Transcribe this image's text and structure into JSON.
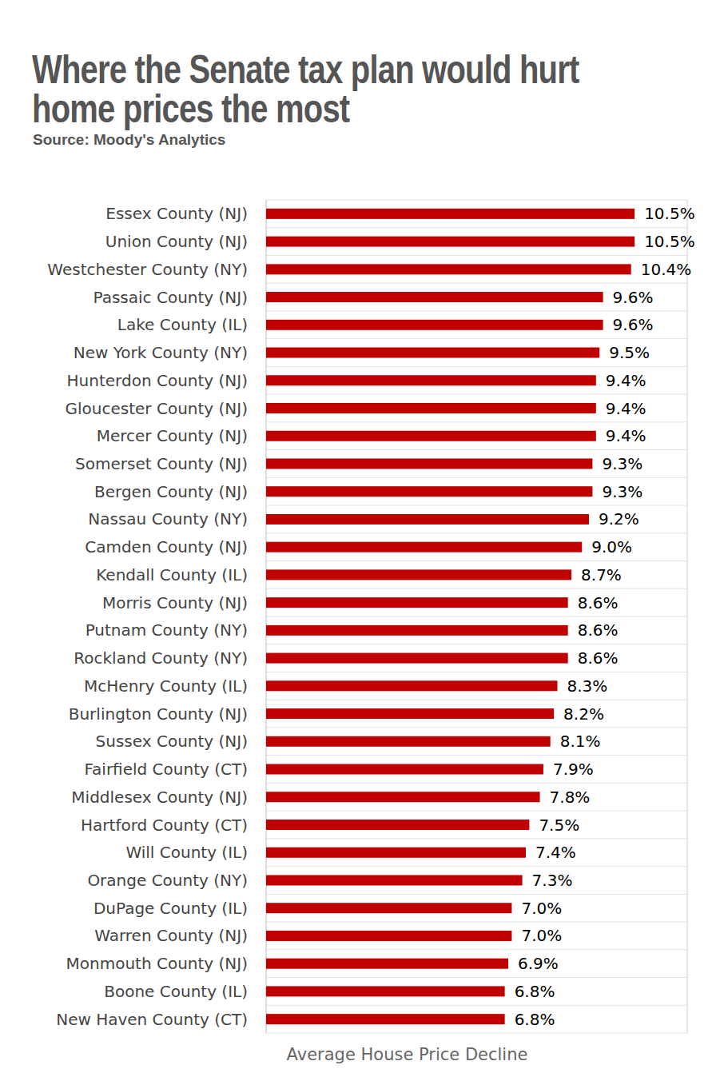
{
  "chart_data": {
    "type": "bar",
    "orientation": "horizontal",
    "title": "Where the Senate tax plan would hurt home prices the most",
    "subtitle": "Source: Moody's Analytics",
    "xlabel": "Average House Price Decline",
    "categories": [
      "Essex County (NJ)",
      "Union County (NJ)",
      "Westchester County (NY)",
      "Passaic County (NJ)",
      "Lake County (IL)",
      "New York County (NY)",
      "Hunterdon County (NJ)",
      "Gloucester County (NJ)",
      "Mercer County (NJ)",
      "Somerset County (NJ)",
      "Bergen County (NJ)",
      "Nassau County (NY)",
      "Camden County (NJ)",
      "Kendall County (IL)",
      "Morris County (NJ)",
      "Putnam County (NY)",
      "Rockland County (NY)",
      "McHenry County (IL)",
      "Burlington County (NJ)",
      "Sussex County (NJ)",
      "Fairfield County (CT)",
      "Middlesex County (NJ)",
      "Hartford County (CT)",
      "Will County (IL)",
      "Orange County (NY)",
      "DuPage County (IL)",
      "Warren County (NJ)",
      "Monmouth County (NJ)",
      "Boone County (IL)",
      "New Haven County (CT)"
    ],
    "values": [
      10.5,
      10.5,
      10.4,
      9.6,
      9.6,
      9.5,
      9.4,
      9.4,
      9.4,
      9.3,
      9.3,
      9.2,
      9.0,
      8.7,
      8.6,
      8.6,
      8.6,
      8.3,
      8.2,
      8.1,
      7.9,
      7.8,
      7.5,
      7.4,
      7.3,
      7.0,
      7.0,
      6.9,
      6.8,
      6.8
    ],
    "value_labels": [
      "10.5%",
      "10.5%",
      "10.4%",
      "9.6%",
      "9.6%",
      "9.5%",
      "9.4%",
      "9.4%",
      "9.4%",
      "9.3%",
      "9.3%",
      "9.2%",
      "9.0%",
      "8.7%",
      "8.6%",
      "8.6%",
      "8.6%",
      "8.3%",
      "8.2%",
      "8.1%",
      "7.9%",
      "7.8%",
      "7.5%",
      "7.4%",
      "7.3%",
      "7.0%",
      "7.0%",
      "6.9%",
      "6.8%",
      "6.8%"
    ],
    "color": "#c00000",
    "xlim": [
      0,
      12
    ],
    "data_labels": true,
    "tick_labels": false
  }
}
